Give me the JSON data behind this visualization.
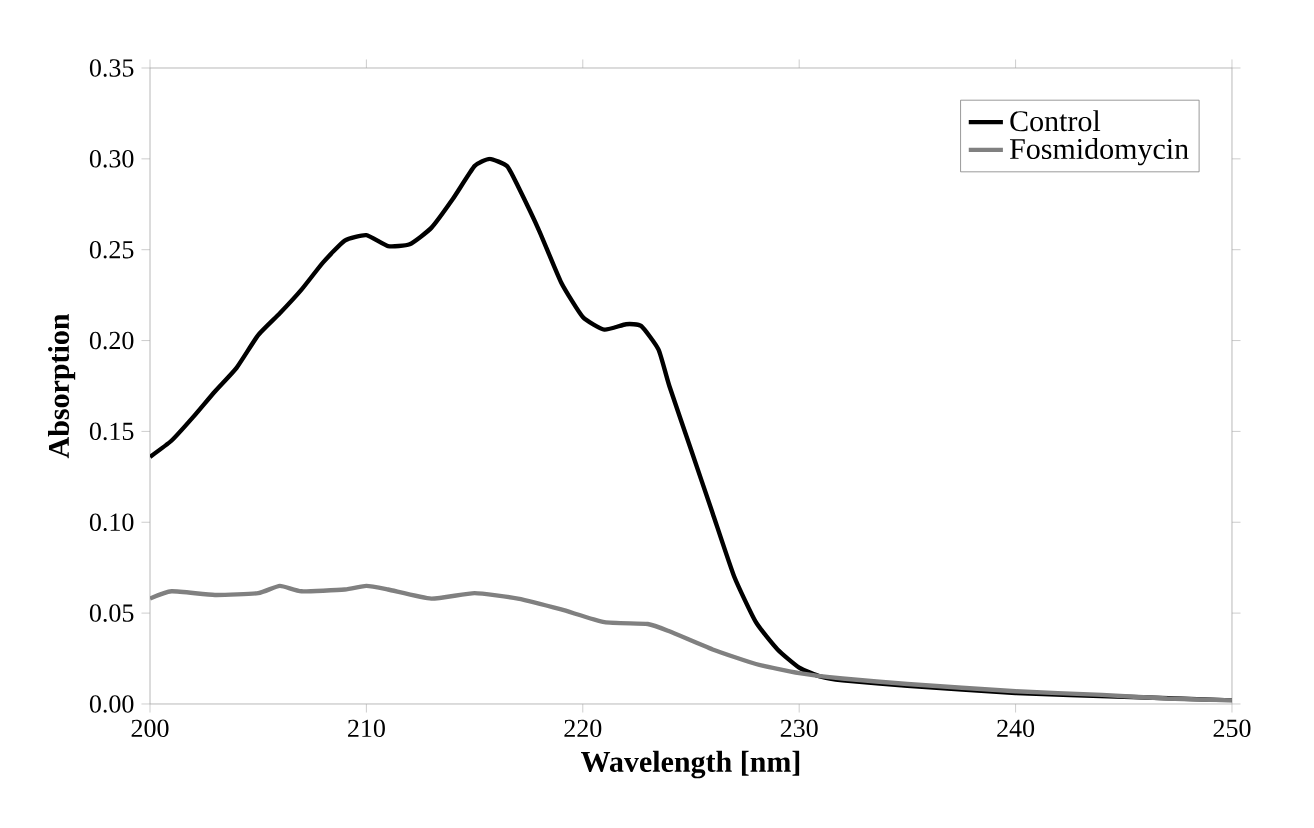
{
  "chart_data": {
    "type": "line",
    "xlabel": "Wavelength [nm]",
    "ylabel": "Absorption",
    "xlim": [
      200,
      250
    ],
    "xticks": [
      200,
      210,
      220,
      230,
      240,
      250
    ],
    "ylim": [
      0,
      0.35
    ],
    "yticks": [
      {
        "value": 0,
        "label": "0.00"
      },
      {
        "value": 0.05,
        "label": "0.05"
      },
      {
        "value": 0.1,
        "label": "0.10"
      },
      {
        "value": 0.15,
        "label": "0.15"
      },
      {
        "value": 0.2,
        "label": "0.20"
      },
      {
        "value": 0.25,
        "label": "0.25"
      },
      {
        "value": 0.3,
        "label": "0.30"
      },
      {
        "value": 0.35,
        "label": "0.35"
      }
    ],
    "legend": "top right",
    "grid": false,
    "marker": "none",
    "line_style": "solid",
    "series": [
      {
        "name": "Control",
        "color": "#000000",
        "x": [
          200,
          201,
          202,
          203,
          204,
          205,
          206,
          207,
          208,
          209,
          210,
          211,
          212,
          213,
          214,
          215,
          215.7,
          216.5,
          217,
          218,
          219,
          220,
          221,
          222,
          222.7,
          223.5,
          224,
          225,
          226,
          227,
          228,
          229,
          230,
          231,
          232,
          235,
          240,
          245,
          250
        ],
        "values": [
          0.136,
          0.145,
          0.158,
          0.172,
          0.185,
          0.203,
          0.215,
          0.228,
          0.243,
          0.255,
          0.258,
          0.252,
          0.253,
          0.262,
          0.278,
          0.296,
          0.3,
          0.296,
          0.285,
          0.26,
          0.232,
          0.213,
          0.206,
          0.209,
          0.208,
          0.195,
          0.175,
          0.14,
          0.105,
          0.07,
          0.045,
          0.03,
          0.02,
          0.015,
          0.013,
          0.01,
          0.006,
          0.004,
          0.002
        ]
      },
      {
        "name": "Fosmidomycin",
        "color": "#808080",
        "x": [
          200,
          201,
          203,
          205,
          206,
          207,
          209,
          210,
          211,
          213,
          215,
          217,
          219,
          221,
          223,
          224,
          226,
          228,
          230,
          232,
          235,
          240,
          244,
          247,
          250
        ],
        "values": [
          0.058,
          0.062,
          0.06,
          0.061,
          0.065,
          0.062,
          0.063,
          0.065,
          0.063,
          0.058,
          0.061,
          0.058,
          0.052,
          0.045,
          0.044,
          0.04,
          0.03,
          0.022,
          0.017,
          0.014,
          0.011,
          0.007,
          0.005,
          0.003,
          0.002
        ]
      }
    ]
  }
}
